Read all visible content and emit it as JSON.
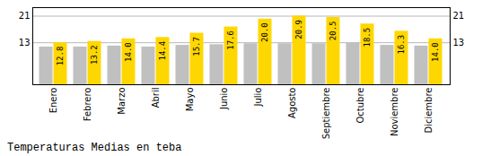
{
  "chart_data": {
    "type": "bar",
    "title": "Temperaturas Medias en teba",
    "categories": [
      "Enero",
      "Febrero",
      "Marzo",
      "Abril",
      "Mayo",
      "Junio",
      "Julio",
      "Agosto",
      "Septiembre",
      "Octubre",
      "Noviembre",
      "Diciembre"
    ],
    "series": [
      {
        "color": "#C0C0C0",
        "values": [
          11.5,
          11.5,
          11.8,
          11.5,
          12.0,
          12.2,
          12.5,
          12.5,
          12.5,
          12.8,
          12.0,
          11.8
        ]
      },
      {
        "color": "#FFD700",
        "values": [
          12.8,
          13.2,
          14.0,
          14.4,
          15.7,
          17.6,
          20.0,
          20.9,
          20.5,
          18.5,
          16.3,
          14.0
        ],
        "value_labels": [
          "12.8",
          "13.2",
          "14.0",
          "14.4",
          "15.7",
          "17.6",
          "20.0",
          "20.9",
          "20.5",
          "18.5",
          "16.3",
          "14.0"
        ]
      }
    ],
    "ylim": [
      0,
      23.5
    ],
    "yticks": [
      12.8,
      20.9
    ],
    "grid": true,
    "data_labels": true
  }
}
